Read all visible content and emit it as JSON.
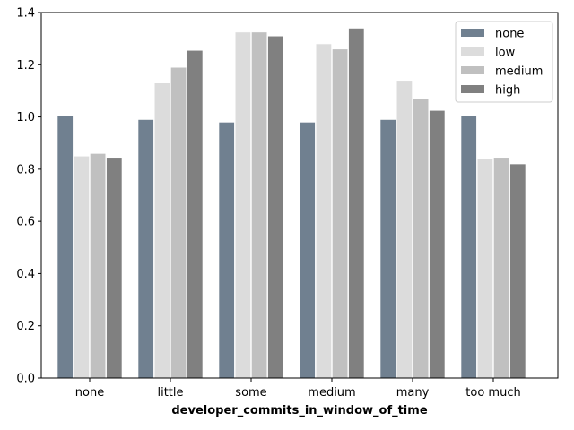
{
  "chart_data": {
    "type": "bar",
    "title": "",
    "xlabel": "developer_commits_in_window_of_time",
    "ylabel": "",
    "categories": [
      "none",
      "little",
      "some",
      "medium",
      "many",
      "too much"
    ],
    "ylim": [
      0,
      1.4
    ],
    "yticks": [
      "0.0",
      "0.2",
      "0.4",
      "0.6",
      "0.8",
      "1.0",
      "1.2",
      "1.4"
    ],
    "grid": false,
    "legend_position": "top-right",
    "series": [
      {
        "name": "none",
        "color": "#708090",
        "values": [
          1.005,
          0.99,
          0.98,
          0.98,
          0.99,
          1.005
        ]
      },
      {
        "name": "low",
        "color": "#dcdcdc",
        "values": [
          0.85,
          1.13,
          1.325,
          1.28,
          1.14,
          0.84
        ]
      },
      {
        "name": "medium",
        "color": "#c0c0c0",
        "values": [
          0.86,
          1.19,
          1.325,
          1.26,
          1.07,
          0.845
        ]
      },
      {
        "name": "high",
        "color": "#808080",
        "values": [
          0.845,
          1.255,
          1.31,
          1.34,
          1.025,
          0.82
        ]
      }
    ]
  }
}
